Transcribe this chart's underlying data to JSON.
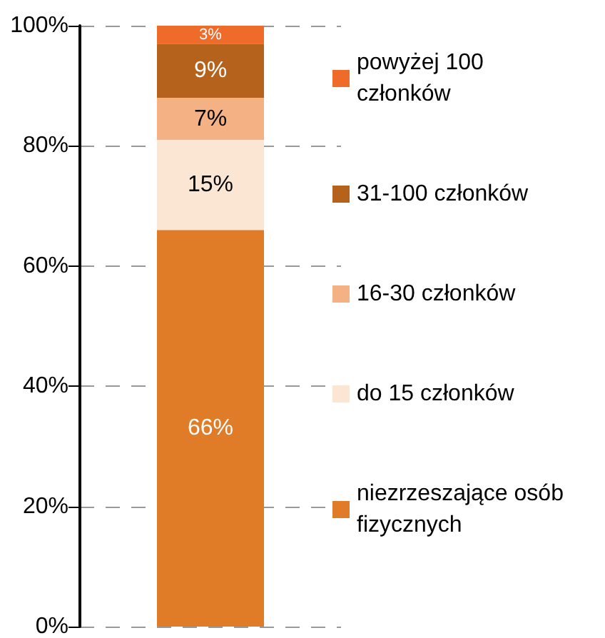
{
  "chart_data": {
    "type": "bar",
    "stacked": true,
    "categories": [
      null
    ],
    "series": [
      {
        "name": "niezrzeszające osób fizycznych",
        "color": "#e07b28",
        "values": [
          66
        ],
        "value_labels": [
          "66%"
        ]
      },
      {
        "name": "do 15 członków",
        "color": "#fbe5d3",
        "values": [
          15
        ],
        "value_labels": [
          "15%"
        ]
      },
      {
        "name": "16-30 członków",
        "color": "#f4b183",
        "values": [
          7
        ],
        "value_labels": [
          "7%"
        ]
      },
      {
        "name": "31-100 członków",
        "color": "#b5621c",
        "values": [
          9
        ],
        "value_labels": [
          "9%"
        ]
      },
      {
        "name": "powyżej 100 członków",
        "color": "#ee6b2a",
        "values": [
          3
        ],
        "value_labels": [
          "3%"
        ]
      }
    ],
    "ylim": [
      0,
      100
    ],
    "yticks": [
      {
        "value": 0,
        "label": "0%"
      },
      {
        "value": 20,
        "label": "20%"
      },
      {
        "value": 40,
        "label": "40%"
      },
      {
        "value": 60,
        "label": "60%"
      },
      {
        "value": 80,
        "label": "80%"
      },
      {
        "value": 100,
        "label": "100%"
      }
    ],
    "grid": "y",
    "legend": "right"
  }
}
